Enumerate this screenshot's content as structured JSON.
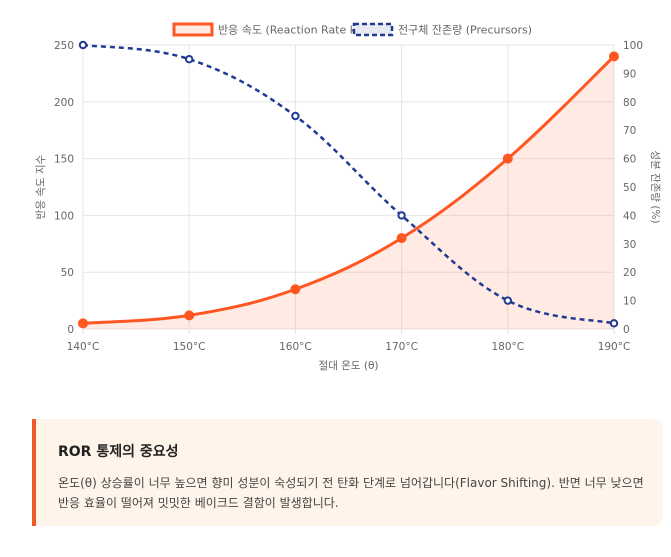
{
  "chart_data": {
    "type": "line",
    "x": [
      "140°C",
      "150°C",
      "160°C",
      "170°C",
      "180°C",
      "190°C"
    ],
    "xlabel": "절대 온도 (θ)",
    "series": [
      {
        "name": "반응 속도 (Reaction Rate k)",
        "axis": "left",
        "values": [
          5,
          12,
          35,
          80,
          150,
          240
        ],
        "color": "#ff5722",
        "style": "solid",
        "fill": true
      },
      {
        "name": "전구체 잔존량 (Precursors)",
        "axis": "right",
        "values": [
          100,
          95,
          75,
          40,
          10,
          2
        ],
        "color": "#1f3a93",
        "style": "dashed",
        "fill": false
      }
    ],
    "y_left": {
      "label": "반응 속도 지수",
      "min": 0,
      "max": 250,
      "ticks": [
        0,
        50,
        100,
        150,
        200,
        250
      ]
    },
    "y_right": {
      "label": "성분 잔존량 (%)",
      "min": 0,
      "max": 100,
      "ticks": [
        0,
        10,
        20,
        30,
        40,
        50,
        60,
        70,
        80,
        90,
        100
      ]
    },
    "legend": "top",
    "grid": true
  },
  "callout": {
    "title": "ROR 통제의 중요성",
    "body": "온도(θ) 상승률이 너무 높으면 향미 성분이 숙성되기 전 탄화 단계로 넘어갑니다(Flavor Shifting). 반면 너무 낮으면 반응 효율이 떨어져 밋밋한 베이크드 결함이 발생합니다."
  }
}
